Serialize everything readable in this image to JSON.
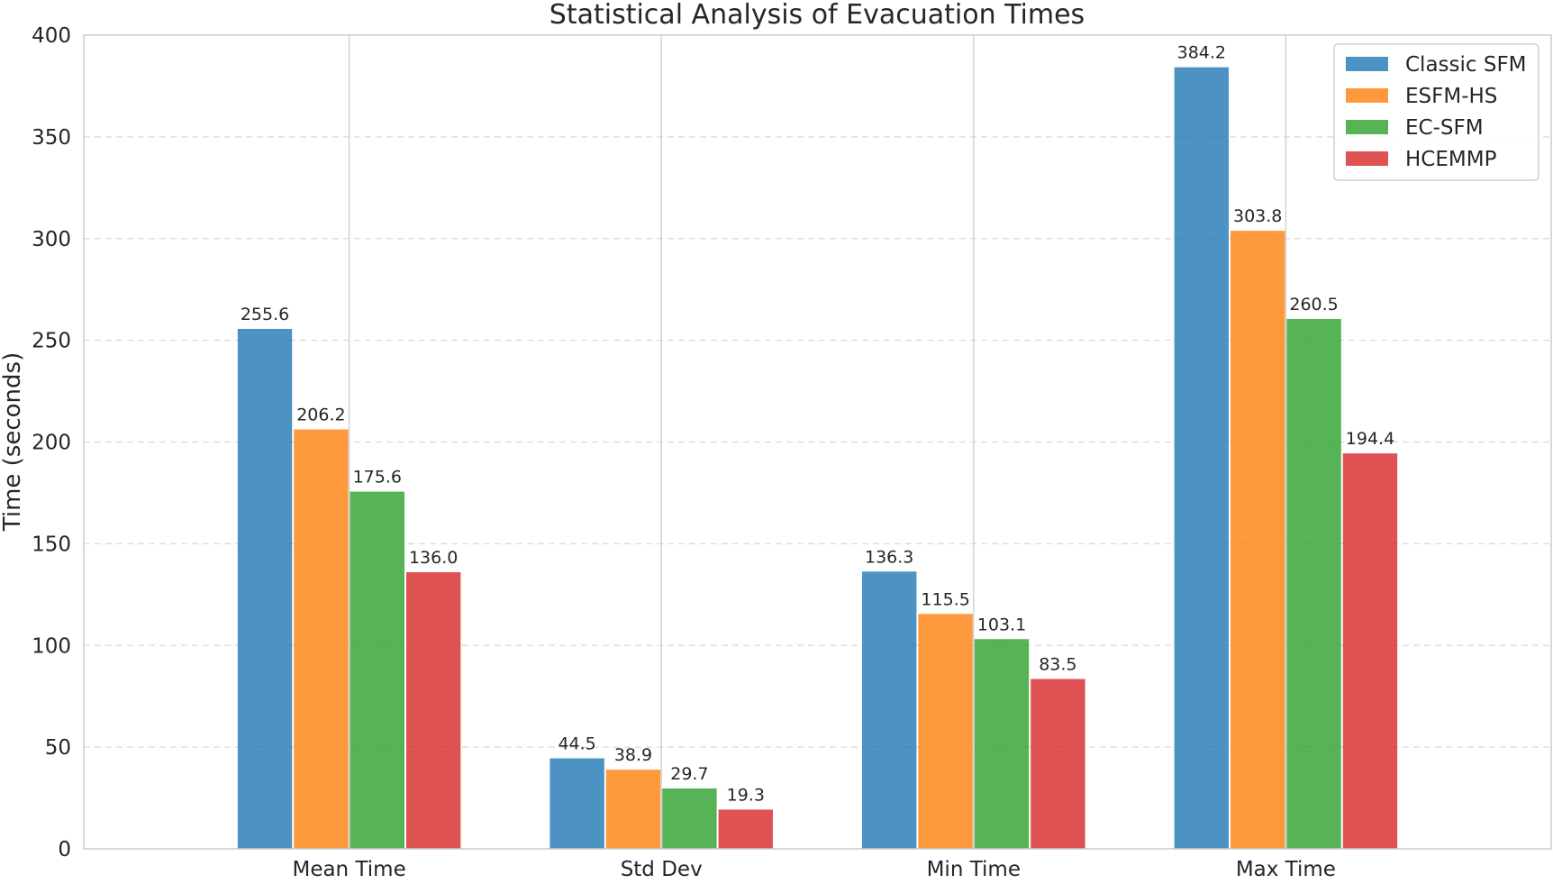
{
  "chart_data": {
    "type": "bar",
    "title": "Statistical Analysis of Evacuation Times",
    "xlabel": "",
    "ylabel": "Time (seconds)",
    "categories": [
      "Mean Time",
      "Std Dev",
      "Min Time",
      "Max Time"
    ],
    "ylim": [
      0,
      400
    ],
    "yticks": [
      0,
      50,
      100,
      150,
      200,
      250,
      300,
      350,
      400
    ],
    "grid": true,
    "legend_position": "top-right",
    "series": [
      {
        "name": "Classic SFM",
        "color": "#1f77b4",
        "values": [
          255.6,
          44.5,
          136.3,
          384.2
        ],
        "labels": [
          "255.6",
          "44.5",
          "136.3",
          "384.2"
        ]
      },
      {
        "name": "ESFM-HS",
        "color": "#ff7f0e",
        "values": [
          206.2,
          38.9,
          115.5,
          303.8
        ],
        "labels": [
          "206.2",
          "38.9",
          "115.5",
          "303.8"
        ]
      },
      {
        "name": "EC-SFM",
        "color": "#2ca02c",
        "values": [
          175.6,
          29.7,
          103.1,
          260.5
        ],
        "labels": [
          "175.6",
          "29.7",
          "103.1",
          "260.5"
        ]
      },
      {
        "name": "HCEMMP",
        "color": "#d62728",
        "values": [
          136.0,
          19.3,
          83.5,
          194.4
        ],
        "labels": [
          "136.0",
          "19.3",
          "83.5",
          "194.4"
        ]
      }
    ]
  }
}
